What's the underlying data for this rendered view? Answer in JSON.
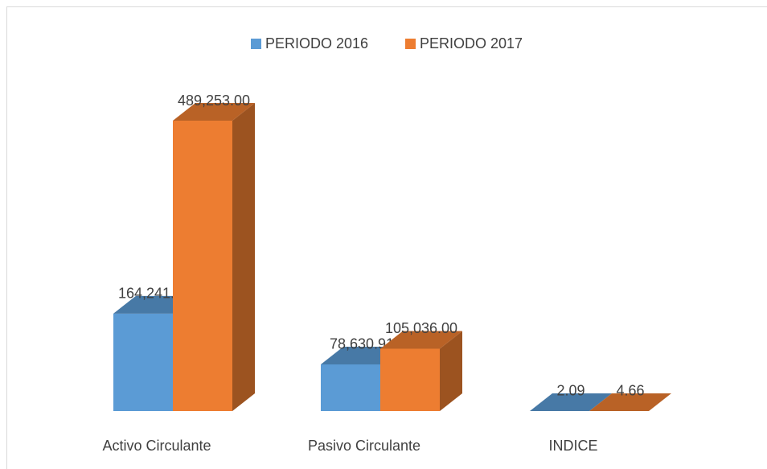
{
  "chart_data": {
    "type": "bar3d",
    "categories": [
      "Activo Circulante",
      "Pasivo Circulante",
      "INDICE"
    ],
    "series": [
      {
        "name": "PERIODO 2016",
        "color": "#5b9bd5",
        "values": [
          164241.36,
          78630.91,
          2.09
        ],
        "value_labels": [
          "164,241.36",
          "78,630.91",
          "2.09"
        ]
      },
      {
        "name": "PERIODO 2017",
        "color": "#ed7d31",
        "values": [
          489253,
          105036,
          4.66
        ],
        "value_labels": [
          "489,253.00",
          "105,036.00",
          "4.66"
        ]
      }
    ],
    "legend": "top"
  }
}
